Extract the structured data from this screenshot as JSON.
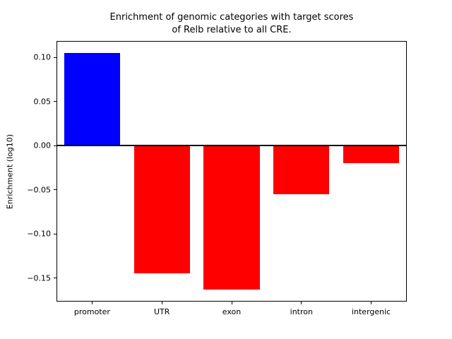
{
  "figure": {
    "title_line1": "Enrichment of genomic categories with target scores",
    "title_line2": "of Relb relative to all CRE.",
    "ylabel": "Enrichment (log10)"
  },
  "chart_data": {
    "type": "bar",
    "title": "Enrichment of genomic categories with target scores of Relb relative to all CRE.",
    "categories": [
      "promoter",
      "UTR",
      "exon",
      "intron",
      "intergenic"
    ],
    "values": [
      0.105,
      -0.145,
      -0.163,
      -0.055,
      -0.02
    ],
    "xlabel": "",
    "ylabel": "Enrichment (log10)",
    "ylim": [
      -0.176,
      0.118
    ],
    "yticks": [
      0.1,
      0.05,
      0.0,
      -0.05,
      -0.1,
      -0.15
    ],
    "bar_colors": {
      "positive": "#0000ff",
      "negative": "#ff0000"
    },
    "zero_line": true,
    "grid": false,
    "legend": false
  }
}
